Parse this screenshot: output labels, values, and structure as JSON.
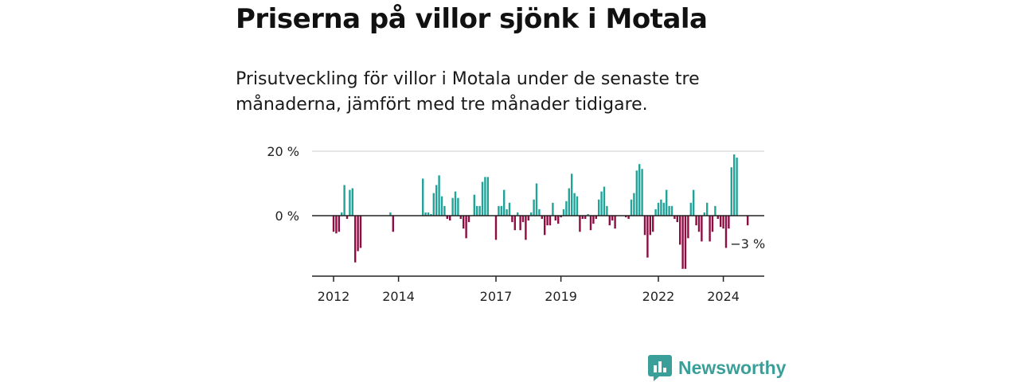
{
  "title": "Priserna på villor sjönk i Motala",
  "subtitle": "Prisutveckling för villor i Motala under de senaste tre månaderna, jämfört med tre månader tidigare.",
  "brand": {
    "name": "Newsworthy",
    "color": "#3a9f99"
  },
  "chart_data": {
    "type": "bar",
    "x_type": "date",
    "ylim": [
      -18,
      20
    ],
    "yticks": [
      {
        "value": 20,
        "label": "20 %"
      },
      {
        "value": 0,
        "label": "0 %"
      }
    ],
    "xticks": [
      {
        "date": "2012-01",
        "label": "2012"
      },
      {
        "date": "2014-01",
        "label": "2014"
      },
      {
        "date": "2017-01",
        "label": "2017"
      },
      {
        "date": "2019-01",
        "label": "2019"
      },
      {
        "date": "2022-01",
        "label": "2022"
      },
      {
        "date": "2024-01",
        "label": "2024"
      }
    ],
    "colors": {
      "positive": "#21a39a",
      "negative": "#8e0d43",
      "grid": "#dddddd",
      "axis": "#222222"
    },
    "annotation": {
      "date": "2024-10",
      "value": -3,
      "label": "−3 %"
    },
    "series": [
      {
        "x": [
          "2012-01",
          "2012-02",
          "2012-03",
          "2012-04",
          "2012-05",
          "2012-06",
          "2012-07",
          "2012-08",
          "2012-09",
          "2012-10",
          "2012-11",
          "2012-12",
          "2013-01",
          "2013-02",
          "2013-03",
          "2013-04",
          "2013-05",
          "2013-06",
          "2013-07",
          "2013-08",
          "2013-09",
          "2013-10",
          "2013-11",
          "2013-12",
          "2014-01",
          "2014-02",
          "2014-03",
          "2014-04",
          "2014-05",
          "2014-06",
          "2014-07",
          "2014-08",
          "2014-09",
          "2014-10",
          "2014-11",
          "2014-12",
          "2015-01",
          "2015-02",
          "2015-03",
          "2015-04",
          "2015-05",
          "2015-06",
          "2015-07",
          "2015-08",
          "2015-09",
          "2015-10",
          "2015-11",
          "2015-12",
          "2016-01",
          "2016-02",
          "2016-03",
          "2016-04",
          "2016-05",
          "2016-06",
          "2016-07",
          "2016-08",
          "2016-09",
          "2016-10",
          "2016-11",
          "2016-12",
          "2017-01",
          "2017-02",
          "2017-03",
          "2017-04",
          "2017-05",
          "2017-06",
          "2017-07",
          "2017-08",
          "2017-09",
          "2017-10",
          "2017-11",
          "2017-12",
          "2018-01",
          "2018-02",
          "2018-03",
          "2018-04",
          "2018-05",
          "2018-06",
          "2018-07",
          "2018-08",
          "2018-09",
          "2018-10",
          "2018-11",
          "2018-12",
          "2019-01",
          "2019-02",
          "2019-03",
          "2019-04",
          "2019-05",
          "2019-06",
          "2019-07",
          "2019-08",
          "2019-09",
          "2019-10",
          "2019-11",
          "2019-12",
          "2020-01",
          "2020-02",
          "2020-03",
          "2020-04",
          "2020-05",
          "2020-06",
          "2020-07",
          "2020-08",
          "2020-09",
          "2020-10",
          "2020-11",
          "2020-12",
          "2021-01",
          "2021-02",
          "2021-03",
          "2021-04",
          "2021-05",
          "2021-06",
          "2021-07",
          "2021-08",
          "2021-09",
          "2021-10",
          "2021-11",
          "2021-12",
          "2022-01",
          "2022-02",
          "2022-03",
          "2022-04",
          "2022-05",
          "2022-06",
          "2022-07",
          "2022-08",
          "2022-09",
          "2022-10",
          "2022-11",
          "2022-12",
          "2023-01",
          "2023-02",
          "2023-03",
          "2023-04",
          "2023-05",
          "2023-06",
          "2023-07",
          "2023-08",
          "2023-09",
          "2023-10",
          "2023-11",
          "2023-12",
          "2024-01",
          "2024-02",
          "2024-03",
          "2024-04",
          "2024-05",
          "2024-06",
          "2024-07",
          "2024-08",
          "2024-09",
          "2024-10"
        ],
        "values": [
          -5,
          -5.5,
          -5,
          1,
          9.5,
          -1,
          8,
          8.5,
          -14.5,
          -11,
          -10,
          null,
          null,
          null,
          null,
          null,
          null,
          null,
          null,
          null,
          null,
          1,
          -5,
          null,
          null,
          null,
          null,
          null,
          null,
          null,
          null,
          null,
          null,
          11.5,
          1,
          1,
          0.5,
          7,
          9.5,
          12.5,
          6,
          3,
          -1,
          -1.5,
          5.5,
          7.5,
          5.5,
          -1,
          -4,
          -7,
          -2,
          null,
          6.5,
          3,
          3,
          10.5,
          12,
          12,
          null,
          null,
          -7.5,
          3,
          3,
          8,
          2,
          4,
          -2,
          -4.5,
          1,
          -4.5,
          -2,
          -7.5,
          -1.5,
          1,
          5,
          10,
          2,
          -1,
          -6,
          -3,
          -3,
          4,
          -1.5,
          -2.5,
          -0.5,
          2,
          4.5,
          8.5,
          13,
          7,
          6,
          -5,
          -1,
          -1,
          0.5,
          -4.5,
          -2.5,
          -1,
          5,
          7.5,
          9,
          3,
          -3,
          -1.5,
          -4,
          null,
          null,
          null,
          -0.5,
          -1,
          5,
          7,
          14,
          16,
          14.5,
          -6,
          -13,
          -6,
          -5,
          2,
          4,
          5,
          4,
          8,
          3,
          3,
          -1,
          -2,
          -9,
          -16.5,
          -16.5,
          -7,
          4,
          8,
          -3,
          -5,
          -8,
          1,
          4,
          -8,
          -5,
          3,
          -1,
          -3.5,
          -4,
          -10,
          -4,
          15,
          19,
          18,
          null,
          null,
          null,
          -3
        ]
      }
    ]
  }
}
